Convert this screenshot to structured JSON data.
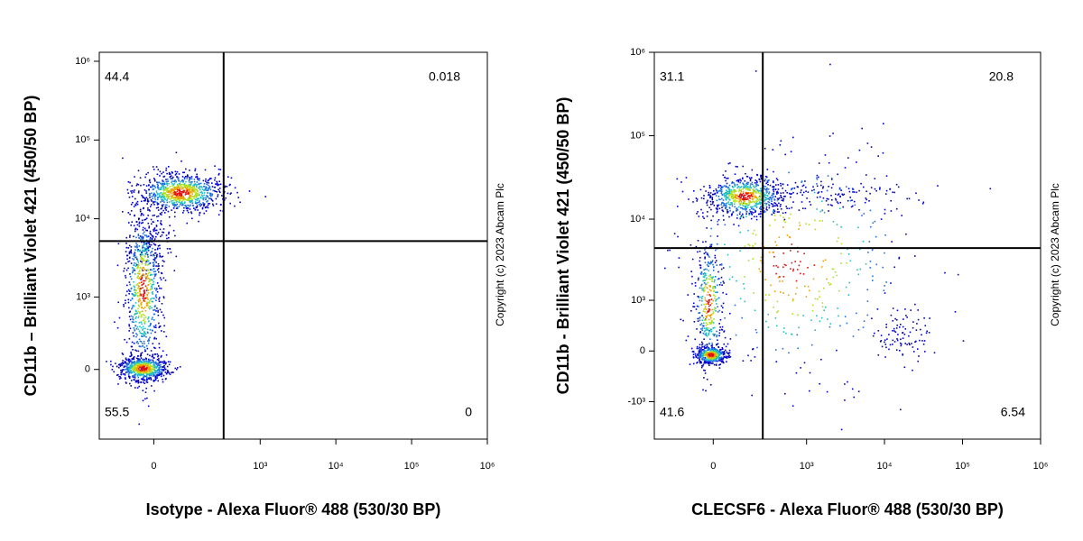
{
  "chart_data": [
    {
      "type": "flow_density",
      "xlabel": "Isotype - Alexa Fluor® 488 (530/30 BP)",
      "ylabel": "CD11b – Brilliant Violet 421 (450/50 BP)",
      "annotation": "Copyright (c) 2023 Abcam Plc",
      "xscale": {
        "type": "arcsinh",
        "cofactor": 79
      },
      "yscale": {
        "type": "arcsinh",
        "cofactor": 244
      },
      "xlim": [
        -200,
        1000000
      ],
      "ylim": [
        -920,
        1300000
      ],
      "xticks": [
        0,
        {
          "value": 1000,
          "label": "10³"
        },
        {
          "value": 10000,
          "label": "10⁴"
        },
        {
          "value": 100000,
          "label": "10⁵"
        },
        {
          "value": 1000000,
          "label": "10⁶"
        }
      ],
      "yticks": [
        0,
        {
          "value": 1000,
          "label": "10³"
        },
        {
          "value": 10000,
          "label": "10⁴"
        },
        {
          "value": 100000,
          "label": "10⁵"
        },
        {
          "value": 1000000,
          "label": "10⁶"
        }
      ],
      "gates": {
        "x": 325,
        "y": 5200
      },
      "quadrant_values": {
        "upper_left": 44.4,
        "upper_right": 0.018,
        "lower_left": 55.5,
        "lower_right": 0
      }
    },
    {
      "type": "flow_density",
      "xlabel": "CLECSF6 - Alexa Fluor® 488 (530/30 BP)",
      "ylabel": "CD11b - Brilliant Violet 421 (450/50 BP)",
      "annotation": "Copyright (c) 2023 Abcam Plc",
      "xscale": {
        "type": "arcsinh",
        "cofactor": 128
      },
      "yscale": {
        "type": "arcsinh",
        "cofactor": 526
      },
      "xlim": [
        -353,
        1000000
      ],
      "ylim": [
        -2970,
        1000000
      ],
      "xticks": [
        0,
        {
          "value": 1000,
          "label": "10³"
        },
        {
          "value": 10000,
          "label": "10⁴"
        },
        {
          "value": 100000,
          "label": "10⁵"
        },
        {
          "value": 1000000,
          "label": "10⁶"
        }
      ],
      "yticks": [
        {
          "value": -1000,
          "label": "-10³"
        },
        0,
        {
          "value": 1000,
          "label": "10³"
        },
        {
          "value": 10000,
          "label": "10⁴"
        },
        {
          "value": 100000,
          "label": "10⁵"
        },
        {
          "value": 1000000,
          "label": "10⁶"
        }
      ],
      "gates": {
        "x": 261,
        "y": 4490
      },
      "quadrant_values": {
        "upper_left": 31.1,
        "upper_right": 20.8,
        "lower_left": 41.6,
        "lower_right": 6.54
      }
    }
  ]
}
